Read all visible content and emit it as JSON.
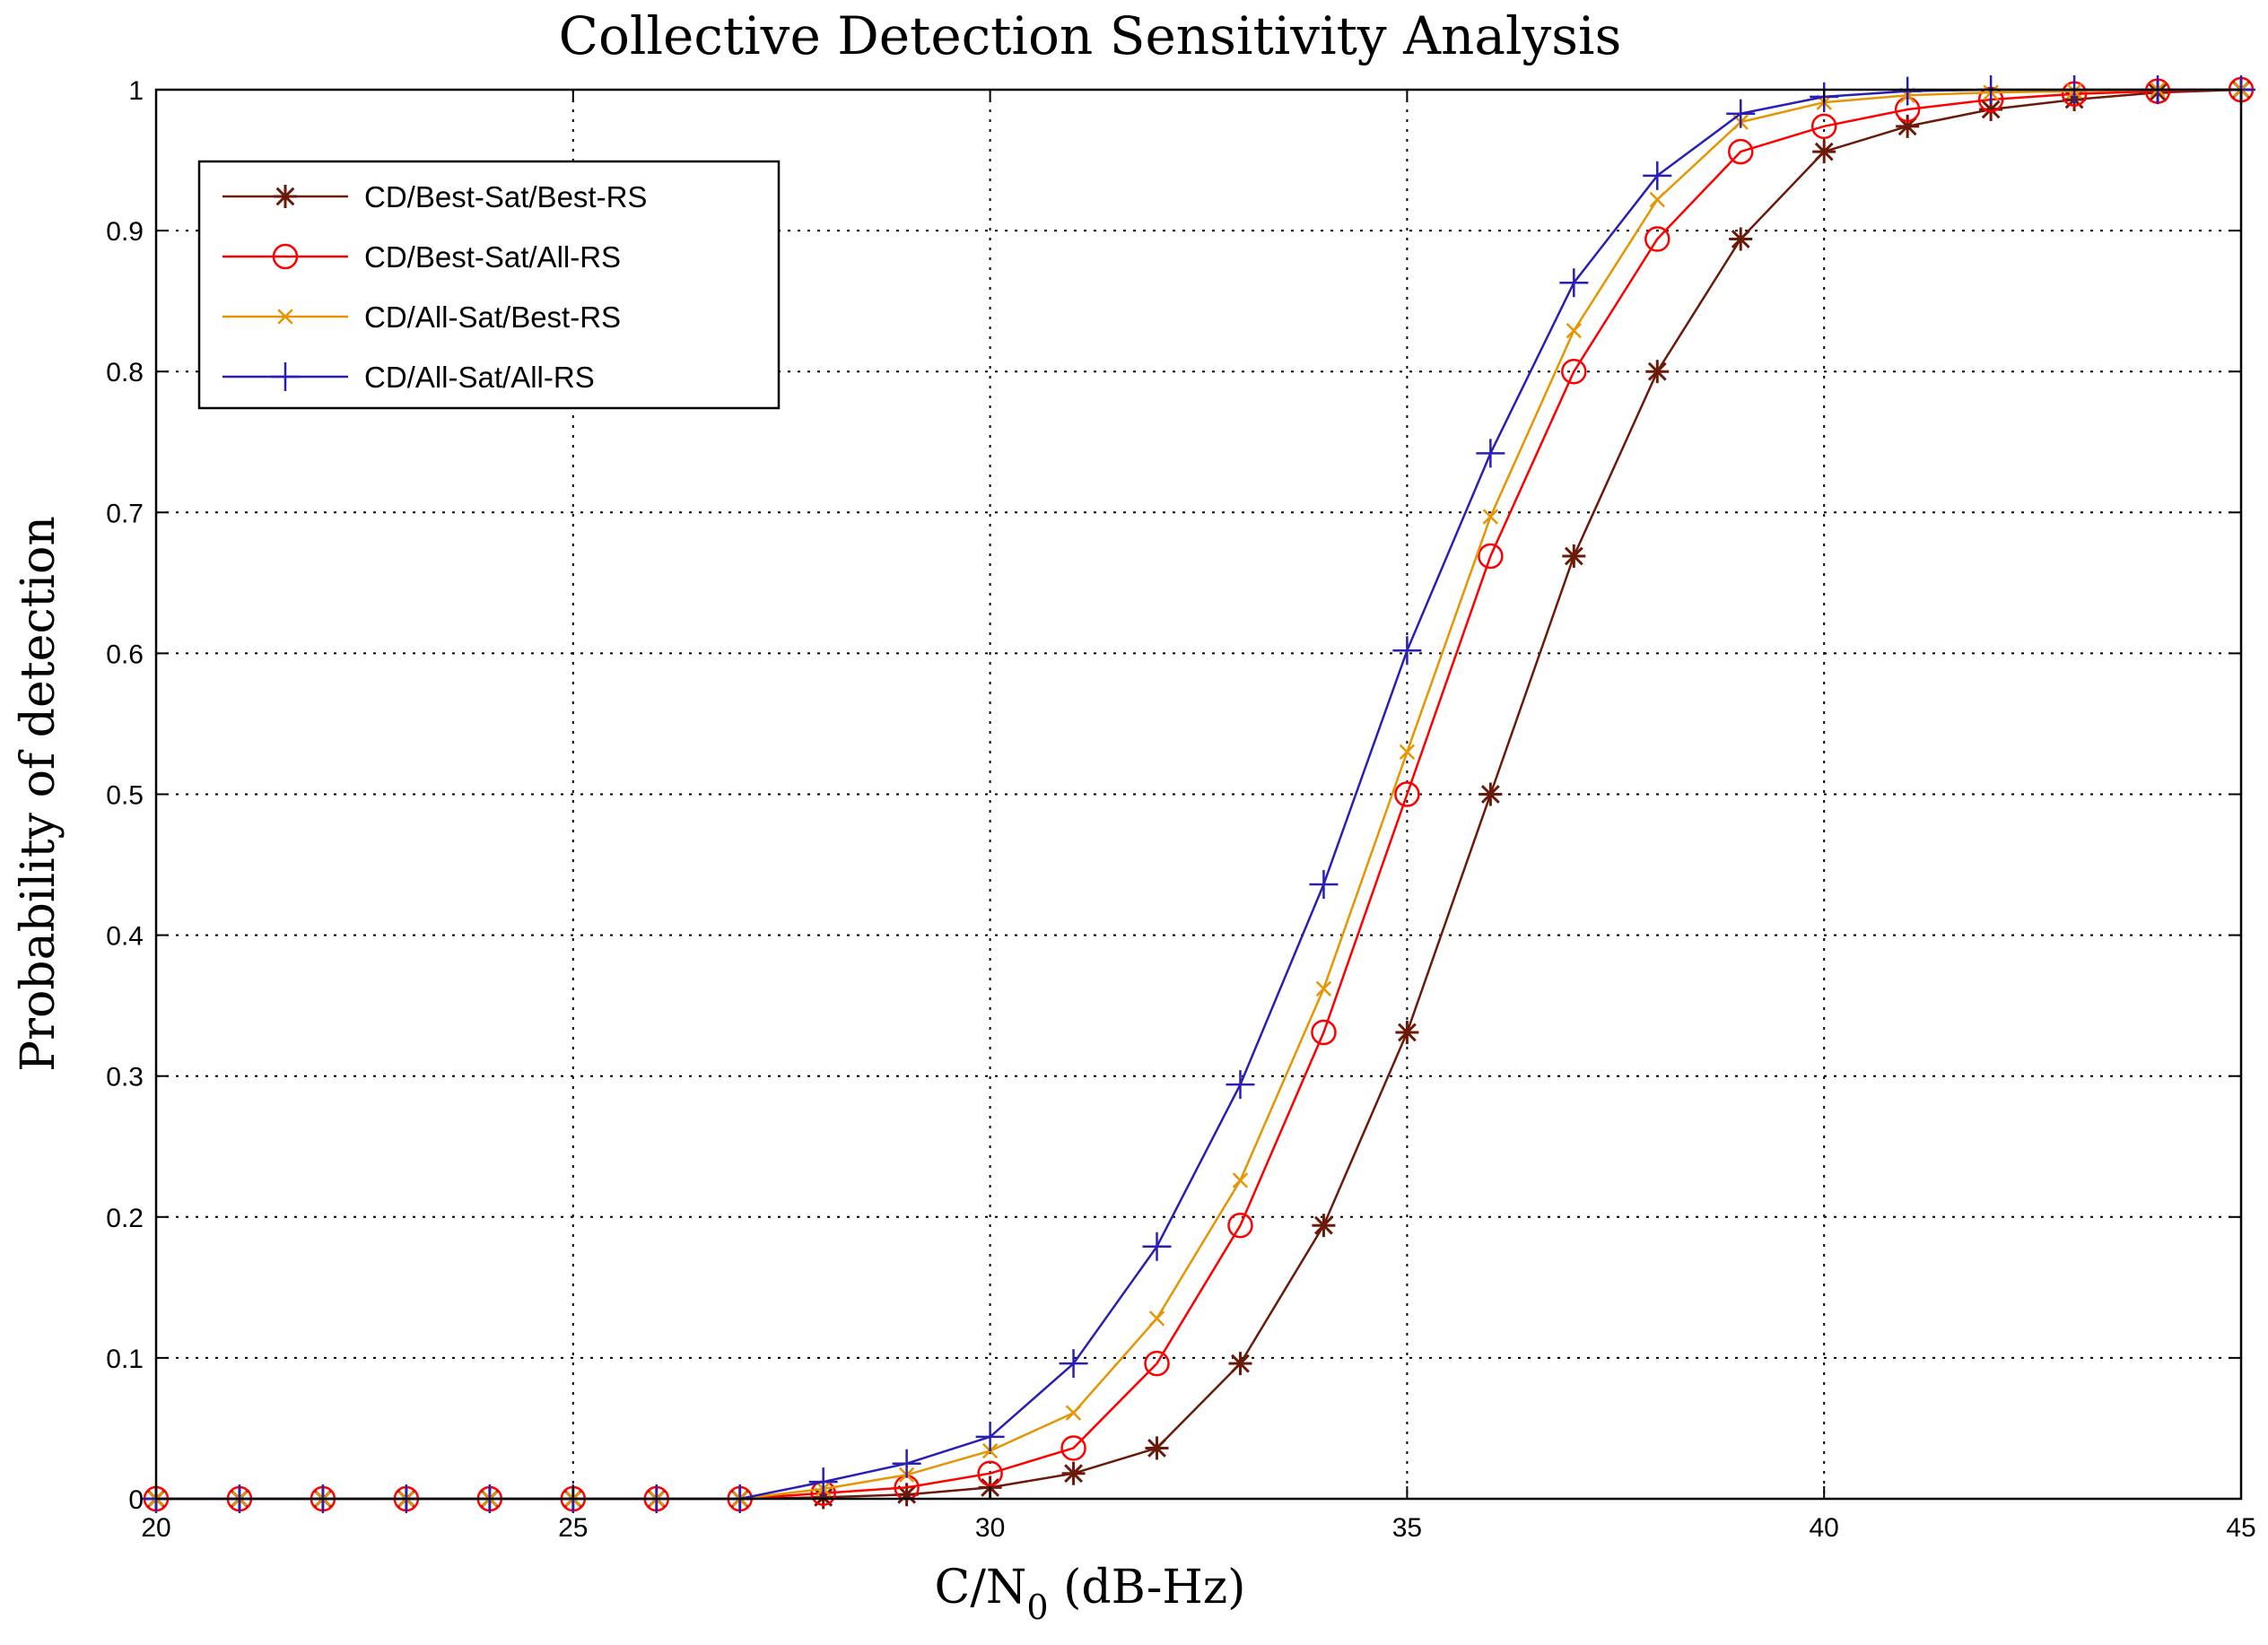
{
  "chart_data": {
    "type": "line",
    "title": "Collective Detection Sensitivity Analysis",
    "xlabel": "C/N",
    "xlabel_subscript": "0",
    "xlabel_unit": " (dB-Hz)",
    "ylabel": "Probability of detection",
    "xlim": [
      20,
      45
    ],
    "ylim": [
      0,
      1
    ],
    "xticks": [
      20,
      25,
      30,
      35,
      40,
      45
    ],
    "yticks": [
      0,
      0.1,
      0.2,
      0.3,
      0.4,
      0.5,
      0.6,
      0.7,
      0.8,
      0.9,
      1
    ],
    "ytick_labels": [
      "0",
      "0.1",
      "0.2",
      "0.3",
      "0.4",
      "0.5",
      "0.6",
      "0.7",
      "0.8",
      "0.9",
      "1"
    ],
    "grid": true,
    "legend_position": "top-left",
    "x": [
      20,
      21,
      22,
      23,
      24,
      25,
      26,
      27,
      28,
      29,
      30,
      31,
      32,
      33,
      34,
      35,
      36,
      37,
      38,
      39,
      40,
      41,
      42,
      43,
      44,
      45
    ],
    "series": [
      {
        "name": "CD/Best-Sat/Best-RS",
        "color": "#6b1a0a",
        "marker": "star",
        "values": [
          0,
          0,
          0,
          0,
          0,
          0,
          0,
          0,
          0.001,
          0.003,
          0.008,
          0.018,
          0.036,
          0.096,
          0.194,
          0.331,
          0.5,
          0.669,
          0.8,
          0.894,
          0.956,
          0.974,
          0.986,
          0.993,
          0.998,
          1.0
        ]
      },
      {
        "name": "CD/Best-Sat/All-RS",
        "color": "#ff0000",
        "marker": "circle",
        "values": [
          0,
          0,
          0,
          0,
          0,
          0,
          0,
          0,
          0.004,
          0.008,
          0.018,
          0.036,
          0.096,
          0.194,
          0.331,
          0.5,
          0.669,
          0.8,
          0.894,
          0.956,
          0.974,
          0.986,
          0.993,
          0.997,
          0.999,
          1.0
        ]
      },
      {
        "name": "CD/All-Sat/Best-RS",
        "color": "#e69500",
        "marker": "x",
        "values": [
          0,
          0,
          0,
          0,
          0,
          0,
          0,
          0,
          0.007,
          0.017,
          0.034,
          0.061,
          0.128,
          0.226,
          0.362,
          0.53,
          0.697,
          0.829,
          0.922,
          0.977,
          0.991,
          0.996,
          0.998,
          0.999,
          1.0,
          1.0
        ]
      },
      {
        "name": "CD/All-Sat/All-RS",
        "color": "#2a1fb5",
        "marker": "plus",
        "values": [
          0,
          0,
          0,
          0,
          0,
          0,
          0,
          0,
          0.012,
          0.025,
          0.044,
          0.096,
          0.179,
          0.294,
          0.436,
          0.602,
          0.742,
          0.863,
          0.939,
          0.983,
          0.995,
          0.999,
          1.0,
          1.0,
          1.0,
          1.0
        ]
      }
    ]
  }
}
